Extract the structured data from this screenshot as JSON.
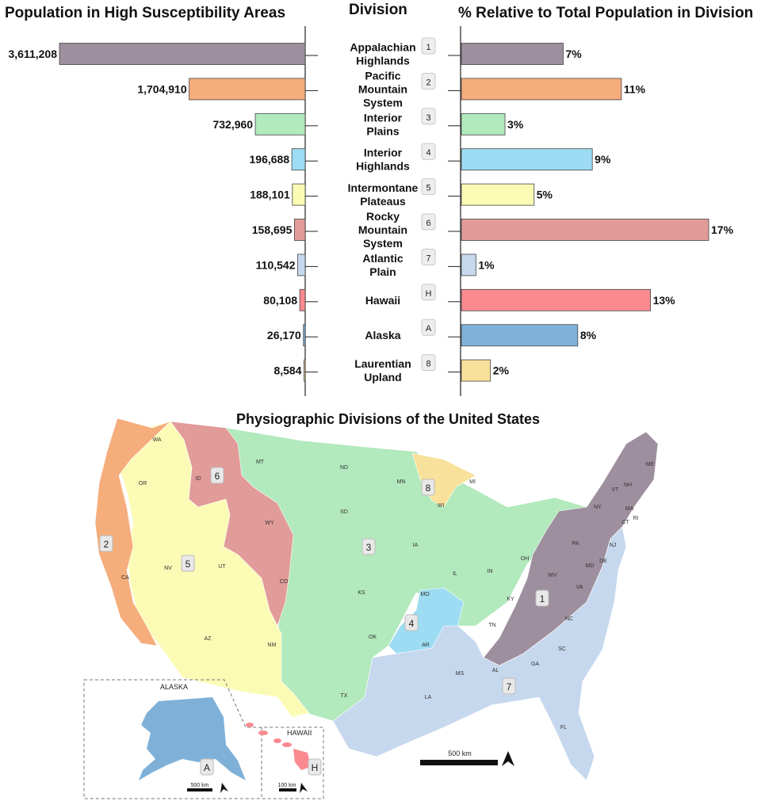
{
  "chart_data": {
    "type": "bar",
    "titles": {
      "left": "Population in High Susceptibility Areas",
      "center": "Division",
      "right": "% Relative to Total Population in Division"
    },
    "rows": [
      {
        "key": "1",
        "name": [
          "Appalachian",
          "Highlands"
        ],
        "population": 3611208,
        "population_label": "3,611,208",
        "percent": 7,
        "percent_label": "7%",
        "color": "#9e8f9e"
      },
      {
        "key": "2",
        "name": [
          "Pacific",
          "Mountain",
          "System"
        ],
        "population": 1704910,
        "population_label": "1,704,910",
        "percent": 11,
        "percent_label": "11%",
        "color": "#f5ad7c"
      },
      {
        "key": "3",
        "name": [
          "Interior",
          "Plains"
        ],
        "population": 732960,
        "population_label": "732,960",
        "percent": 3,
        "percent_label": "3%",
        "color": "#b2e9bd"
      },
      {
        "key": "4",
        "name": [
          "Interior",
          "Highlands"
        ],
        "population": 196688,
        "population_label": "196,688",
        "percent": 9,
        "percent_label": "9%",
        "color": "#9ddcf3"
      },
      {
        "key": "5",
        "name": [
          "Intermontane",
          "Plateaus"
        ],
        "population": 188101,
        "population_label": "188,101",
        "percent": 5,
        "percent_label": "5%",
        "color": "#fbfbb6"
      },
      {
        "key": "6",
        "name": [
          "Rocky",
          "Mountain",
          "System"
        ],
        "population": 158695,
        "population_label": "158,695",
        "percent": 17,
        "percent_label": "17%",
        "color": "#e19b98"
      },
      {
        "key": "7",
        "name": [
          "Atlantic",
          "Plain"
        ],
        "population": 110542,
        "population_label": "110,542",
        "percent": 1,
        "percent_label": "1%",
        "color": "#c6d8ee"
      },
      {
        "key": "H",
        "name": [
          "Hawaii"
        ],
        "population": 80108,
        "population_label": "80,108",
        "percent": 13,
        "percent_label": "13%",
        "color": "#fa8a90"
      },
      {
        "key": "A",
        "name": [
          "Alaska"
        ],
        "population": 26170,
        "population_label": "26,170",
        "percent": 8,
        "percent_label": "8%",
        "color": "#7fb1d8"
      },
      {
        "key": "8",
        "name": [
          "Laurentian",
          "Upland"
        ],
        "population": 8584,
        "population_label": "8,584",
        "percent": 2,
        "percent_label": "2%",
        "color": "#f8e19a"
      }
    ],
    "population_range": [
      0,
      3611208
    ],
    "percent_range": [
      0,
      17
    ],
    "grid": false
  },
  "map": {
    "title": "Physiographic Divisions of the United States",
    "scale_main": "500 km",
    "alaska_label": "ALASKA",
    "hawaii_label": "HAWAII",
    "scale_alaska": "500 km",
    "scale_hawaii": "100 km",
    "states": [
      "WA",
      "OR",
      "CA",
      "NV",
      "ID",
      "MT",
      "WY",
      "UT",
      "AZ",
      "CO",
      "NM",
      "ND",
      "SD",
      "NE",
      "KS",
      "OK",
      "TX",
      "MN",
      "IA",
      "MO",
      "AR",
      "LA",
      "WI",
      "MI",
      "IL",
      "IN",
      "OH",
      "KY",
      "TN",
      "MS",
      "AL",
      "GA",
      "FL",
      "SC",
      "NC",
      "VA",
      "WV",
      "PA",
      "NY",
      "NJ",
      "DE",
      "MD",
      "CT",
      "RI",
      "MA",
      "VT",
      "NH",
      "ME"
    ]
  }
}
